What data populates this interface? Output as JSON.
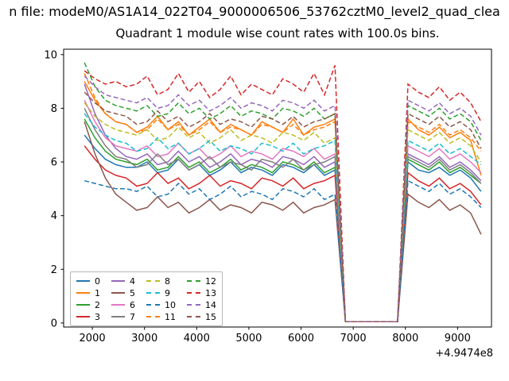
{
  "figure": {
    "suptitle": "n file: modeM0/AS1A14_022T04_9000006506_53762cztM0_level2_quad_clea",
    "title": "Quadrant 1 module wise count rates with 100.0s bins.",
    "x_offset": "+4.9474e8"
  },
  "chart_data": {
    "type": "line",
    "title": "Quadrant 1 module wise count rates with 100.0s bins.",
    "suptitle": "n file: modeM0/AS1A14_022T04_9000006506_53762cztM0_level2_quad_clea",
    "xlabel": "",
    "ylabel": "",
    "xlim": [
      1450,
      9650
    ],
    "ylim": [
      -0.15,
      10.2
    ],
    "xticks": [
      2000,
      3000,
      4000,
      5000,
      6000,
      7000,
      8000,
      9000
    ],
    "yticks": [
      0,
      2,
      4,
      6,
      8,
      10
    ],
    "x_axis_offset": "+4.9474e8",
    "grid": false,
    "legend_position": "lower left",
    "legend_columns": 4,
    "x": [
      1850,
      2050,
      2250,
      2450,
      2650,
      2850,
      3050,
      3250,
      3450,
      3650,
      3850,
      4050,
      4250,
      4450,
      4650,
      4850,
      5050,
      5250,
      5450,
      5650,
      5850,
      6050,
      6250,
      6450,
      6650,
      6850,
      7050,
      7250,
      7450,
      7650,
      7850,
      8050,
      8250,
      8450,
      8650,
      8850,
      9050,
      9250,
      9450
    ],
    "series": [
      {
        "name": "0",
        "color": "#1f77b4",
        "dash": false,
        "values": [
          7.0,
          6.5,
          6.1,
          5.9,
          5.8,
          5.8,
          6.0,
          5.6,
          5.7,
          6.1,
          5.7,
          5.9,
          5.5,
          5.7,
          6.0,
          5.6,
          5.8,
          5.7,
          5.5,
          5.9,
          5.8,
          5.6,
          5.9,
          5.5,
          5.7,
          0.05,
          0.05,
          0.05,
          0.05,
          0.05,
          0.05,
          6.0,
          5.7,
          5.6,
          5.8,
          5.5,
          5.7,
          5.4,
          4.9
        ]
      },
      {
        "name": "1",
        "color": "#ff7f0e",
        "dash": false,
        "values": [
          9.0,
          8.3,
          7.8,
          7.5,
          7.4,
          7.1,
          7.3,
          7.7,
          7.2,
          7.5,
          7.0,
          7.3,
          7.6,
          7.1,
          7.4,
          7.2,
          7.0,
          7.5,
          7.3,
          7.1,
          7.6,
          7.0,
          7.3,
          7.4,
          7.6,
          0.05,
          0.05,
          0.05,
          0.05,
          0.05,
          0.05,
          7.6,
          7.2,
          7.0,
          7.3,
          6.9,
          7.1,
          6.8,
          5.5
        ]
      },
      {
        "name": "2",
        "color": "#2ca02c",
        "dash": false,
        "values": [
          7.6,
          6.9,
          6.4,
          6.1,
          6.0,
          5.9,
          6.1,
          5.7,
          5.8,
          6.2,
          5.8,
          6.0,
          5.6,
          5.8,
          6.1,
          5.7,
          5.9,
          5.8,
          5.6,
          6.0,
          5.9,
          5.7,
          6.0,
          5.6,
          5.8,
          0.05,
          0.05,
          0.05,
          0.05,
          0.05,
          0.05,
          6.1,
          5.9,
          5.7,
          6.0,
          5.6,
          5.8,
          5.5,
          5.2
        ]
      },
      {
        "name": "3",
        "color": "#d62728",
        "dash": false,
        "values": [
          6.6,
          6.1,
          5.7,
          5.5,
          5.4,
          5.1,
          5.2,
          5.6,
          5.2,
          5.4,
          5.0,
          5.2,
          5.5,
          5.1,
          5.3,
          5.2,
          5.0,
          5.4,
          5.3,
          5.1,
          5.4,
          5.0,
          5.2,
          5.3,
          5.5,
          0.05,
          0.05,
          0.05,
          0.05,
          0.05,
          0.05,
          5.6,
          5.3,
          5.1,
          5.4,
          5.0,
          5.2,
          4.9,
          4.4
        ]
      },
      {
        "name": "4",
        "color": "#9467bd",
        "dash": false,
        "values": [
          8.9,
          7.8,
          7.0,
          6.5,
          6.2,
          6.1,
          6.3,
          5.9,
          6.0,
          6.4,
          6.0,
          6.2,
          5.8,
          6.0,
          6.3,
          5.9,
          6.1,
          6.0,
          5.8,
          6.2,
          6.1,
          5.9,
          6.2,
          5.8,
          6.0,
          0.05,
          0.05,
          0.05,
          0.05,
          0.05,
          0.05,
          6.3,
          6.1,
          5.9,
          6.2,
          5.8,
          6.0,
          5.7,
          5.3
        ]
      },
      {
        "name": "5",
        "color": "#8c564b",
        "dash": false,
        "values": [
          7.5,
          6.3,
          5.4,
          4.8,
          4.5,
          4.2,
          4.3,
          4.7,
          4.3,
          4.5,
          4.1,
          4.3,
          4.6,
          4.2,
          4.4,
          4.3,
          4.1,
          4.5,
          4.4,
          4.2,
          4.5,
          4.1,
          4.3,
          4.4,
          4.6,
          0.05,
          0.05,
          0.05,
          0.05,
          0.05,
          0.05,
          4.8,
          4.5,
          4.3,
          4.6,
          4.2,
          4.4,
          4.1,
          3.3
        ]
      },
      {
        "name": "6",
        "color": "#e377c2",
        "dash": false,
        "values": [
          8.3,
          7.5,
          6.9,
          6.6,
          6.5,
          6.4,
          6.6,
          6.2,
          6.3,
          6.7,
          6.3,
          6.5,
          6.1,
          6.3,
          6.6,
          6.2,
          6.4,
          6.3,
          6.1,
          6.5,
          6.4,
          6.2,
          6.5,
          6.1,
          6.3,
          0.05,
          0.05,
          0.05,
          0.05,
          0.05,
          0.05,
          6.6,
          6.4,
          6.2,
          6.5,
          6.1,
          6.3,
          6.0,
          5.6
        ]
      },
      {
        "name": "7",
        "color": "#7f7f7f",
        "dash": false,
        "values": [
          8.0,
          7.2,
          6.6,
          6.2,
          6.1,
          5.8,
          5.9,
          6.3,
          5.9,
          6.1,
          5.7,
          5.9,
          6.2,
          5.8,
          6.0,
          5.9,
          5.7,
          6.1,
          6.0,
          5.8,
          6.1,
          5.7,
          5.9,
          6.0,
          6.2,
          0.05,
          0.05,
          0.05,
          0.05,
          0.05,
          0.05,
          6.2,
          6.0,
          5.8,
          6.1,
          5.7,
          5.9,
          5.6,
          5.2
        ]
      },
      {
        "name": "8",
        "color": "#bcbd22",
        "dash": true,
        "values": [
          8.2,
          7.7,
          7.4,
          7.2,
          7.1,
          7.0,
          7.2,
          6.8,
          6.9,
          7.3,
          6.9,
          7.1,
          6.7,
          6.9,
          7.2,
          6.8,
          7.0,
          6.9,
          6.7,
          7.1,
          7.0,
          6.8,
          7.1,
          6.7,
          6.9,
          0.05,
          0.05,
          0.05,
          0.05,
          0.05,
          0.05,
          7.2,
          7.0,
          6.8,
          7.1,
          6.7,
          6.9,
          6.6,
          6.0
        ]
      },
      {
        "name": "9",
        "color": "#17becf",
        "dash": true,
        "values": [
          7.8,
          7.3,
          7.0,
          6.8,
          6.7,
          6.4,
          6.5,
          6.9,
          6.5,
          6.7,
          6.3,
          6.5,
          6.8,
          6.4,
          6.6,
          6.5,
          6.3,
          6.7,
          6.6,
          6.4,
          6.7,
          6.3,
          6.5,
          6.6,
          6.8,
          0.05,
          0.05,
          0.05,
          0.05,
          0.05,
          0.05,
          6.8,
          6.6,
          6.4,
          6.7,
          6.3,
          6.5,
          6.2,
          5.9
        ]
      },
      {
        "name": "10",
        "color": "#1f77b4",
        "dash": true,
        "values": [
          5.3,
          5.2,
          5.1,
          5.0,
          5.0,
          4.9,
          5.1,
          4.7,
          4.8,
          5.2,
          4.8,
          5.0,
          4.6,
          4.8,
          5.1,
          4.7,
          4.9,
          4.8,
          4.6,
          5.0,
          4.9,
          4.7,
          5.0,
          4.6,
          4.8,
          0.05,
          0.05,
          0.05,
          0.05,
          0.05,
          0.05,
          5.3,
          5.1,
          4.9,
          5.2,
          4.8,
          5.0,
          4.7,
          4.3
        ]
      },
      {
        "name": "11",
        "color": "#ff7f0e",
        "dash": true,
        "values": [
          9.3,
          8.4,
          7.8,
          7.5,
          7.4,
          7.1,
          7.2,
          7.6,
          7.2,
          7.4,
          7.0,
          7.2,
          7.5,
          7.1,
          7.3,
          7.2,
          7.0,
          7.4,
          7.3,
          7.1,
          7.4,
          7.0,
          7.2,
          7.3,
          7.5,
          0.05,
          0.05,
          0.05,
          0.05,
          0.05,
          0.05,
          7.5,
          7.3,
          7.1,
          7.4,
          7.0,
          7.2,
          6.9,
          6.4
        ]
      },
      {
        "name": "12",
        "color": "#2ca02c",
        "dash": true,
        "values": [
          9.7,
          8.8,
          8.3,
          8.1,
          8.0,
          7.9,
          8.1,
          7.7,
          7.8,
          8.2,
          7.8,
          8.0,
          7.6,
          7.8,
          8.1,
          7.7,
          7.9,
          7.8,
          7.6,
          8.0,
          7.9,
          7.7,
          8.0,
          7.6,
          7.8,
          0.05,
          0.05,
          0.05,
          0.05,
          0.05,
          0.05,
          8.1,
          7.9,
          7.7,
          8.0,
          7.6,
          7.8,
          7.5,
          6.8
        ]
      },
      {
        "name": "13",
        "color": "#d62728",
        "dash": true,
        "values": [
          9.4,
          9.1,
          8.9,
          9.0,
          8.8,
          8.9,
          9.2,
          8.5,
          8.7,
          9.3,
          8.6,
          9.0,
          8.4,
          8.7,
          9.2,
          8.5,
          8.9,
          8.7,
          8.5,
          9.1,
          8.9,
          8.6,
          9.3,
          8.5,
          9.6,
          0.05,
          0.05,
          0.05,
          0.05,
          0.05,
          0.05,
          8.9,
          8.6,
          8.4,
          8.8,
          8.3,
          8.6,
          8.2,
          7.5
        ]
      },
      {
        "name": "14",
        "color": "#9467bd",
        "dash": true,
        "values": [
          9.2,
          8.8,
          8.5,
          8.4,
          8.3,
          8.2,
          8.4,
          8.0,
          8.1,
          8.5,
          8.1,
          8.3,
          7.9,
          8.1,
          8.4,
          8.0,
          8.2,
          8.1,
          7.9,
          8.3,
          8.2,
          8.0,
          8.3,
          7.9,
          8.1,
          0.05,
          0.05,
          0.05,
          0.05,
          0.05,
          0.05,
          8.3,
          8.1,
          7.9,
          8.2,
          7.8,
          8.0,
          7.7,
          7.0
        ]
      },
      {
        "name": "15",
        "color": "#8c564b",
        "dash": true,
        "values": [
          8.6,
          8.2,
          7.9,
          7.8,
          7.7,
          7.4,
          7.5,
          7.9,
          7.5,
          7.7,
          7.3,
          7.5,
          7.8,
          7.4,
          7.6,
          7.5,
          7.3,
          7.7,
          7.6,
          7.4,
          7.7,
          7.3,
          7.5,
          7.6,
          7.8,
          0.05,
          0.05,
          0.05,
          0.05,
          0.05,
          0.05,
          7.8,
          7.6,
          7.4,
          7.7,
          7.3,
          7.5,
          7.2,
          6.5
        ]
      }
    ]
  }
}
